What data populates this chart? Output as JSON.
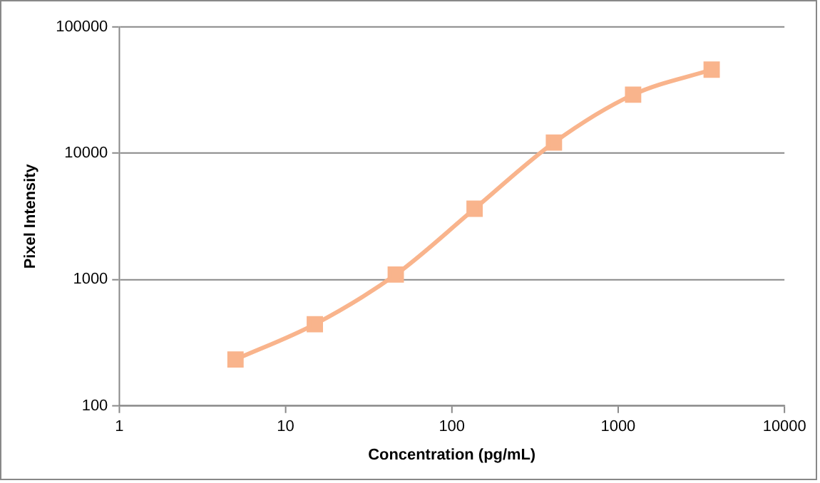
{
  "chart_data": {
    "type": "line",
    "xlabel": "Concentration (pg/mL)",
    "ylabel": "Pixel Intensity",
    "x": [
      5,
      15,
      46,
      137,
      411,
      1230,
      3650
    ],
    "series": [
      {
        "color": "#f9b48c",
        "values": [
          233,
          443,
          1096,
          3640,
          12160,
          29100,
          45900
        ]
      }
    ],
    "log": "xy",
    "xlim": [
      1,
      10000
    ],
    "xticks": [
      1,
      10,
      100,
      1000,
      10000
    ],
    "ylim": [
      100,
      100000
    ],
    "yticks": [
      100,
      1000,
      10000,
      100000
    ],
    "grid": "y",
    "legend": false,
    "marker": "square",
    "line_style": "solid"
  }
}
